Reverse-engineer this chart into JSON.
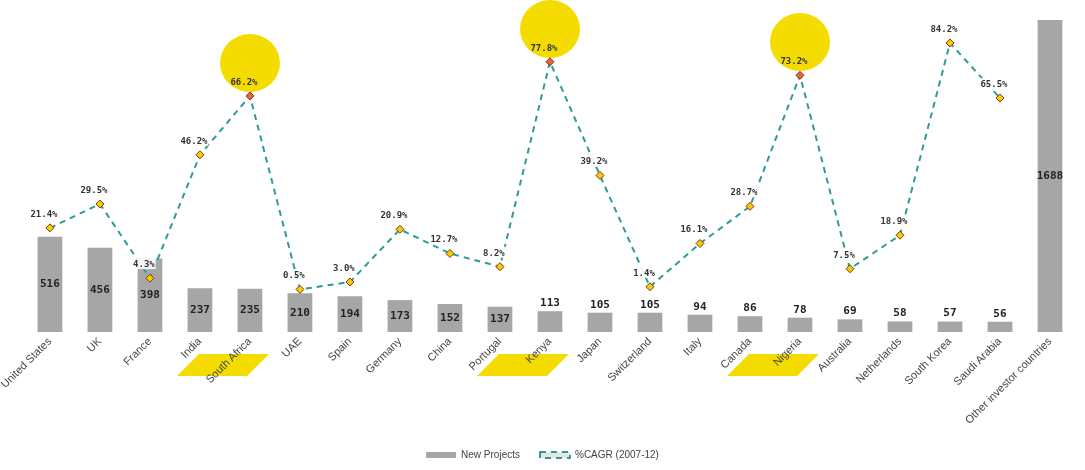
{
  "chart_data": {
    "type": "bar",
    "categories": [
      "United States",
      "UK",
      "France",
      "India",
      "South Africa",
      "UAE",
      "Spain",
      "Germany",
      "China",
      "Portugal",
      "Kenya",
      "Japan",
      "Switzerland",
      "Italy",
      "Canada",
      "Nigeria",
      "Australia",
      "Netherlands",
      "South Korea",
      "Saudi Arabia",
      "Other investor countries"
    ],
    "series": [
      {
        "name": "New Projects",
        "type": "bar",
        "color": "#a6a6a6",
        "values": [
          516,
          456,
          398,
          237,
          235,
          210,
          194,
          173,
          152,
          137,
          113,
          105,
          105,
          94,
          86,
          78,
          69,
          58,
          57,
          56,
          1688
        ]
      },
      {
        "name": "%CAGR (2007-12)",
        "type": "line",
        "axis": "y2",
        "color": "#2e9a9a",
        "marker": "diamond",
        "line_style": "dashed",
        "values": [
          21.4,
          29.5,
          4.3,
          46.2,
          66.2,
          0.5,
          3.0,
          20.9,
          12.7,
          8.2,
          77.8,
          39.2,
          1.4,
          16.1,
          28.7,
          73.2,
          7.5,
          18.9,
          84.2,
          65.5,
          null
        ],
        "value_labels": [
          "21.4%",
          "29.5%",
          "4.3%",
          "46.2%",
          "66.2%",
          "0.5%",
          "3.0%",
          "20.9%",
          "12.7%",
          "8.2%",
          "77.8%",
          "39.2%",
          "1.4%",
          "16.1%",
          "28.7%",
          "73.2%",
          "7.5%",
          "18.9%",
          "84.2%",
          "65.5%",
          null
        ]
      }
    ],
    "ylim": [
      0,
      1688
    ],
    "y2lim": [
      -14,
      92
    ],
    "data_labels": true,
    "tick_labels": "x",
    "grid": false,
    "legend": "bottom"
  }
}
